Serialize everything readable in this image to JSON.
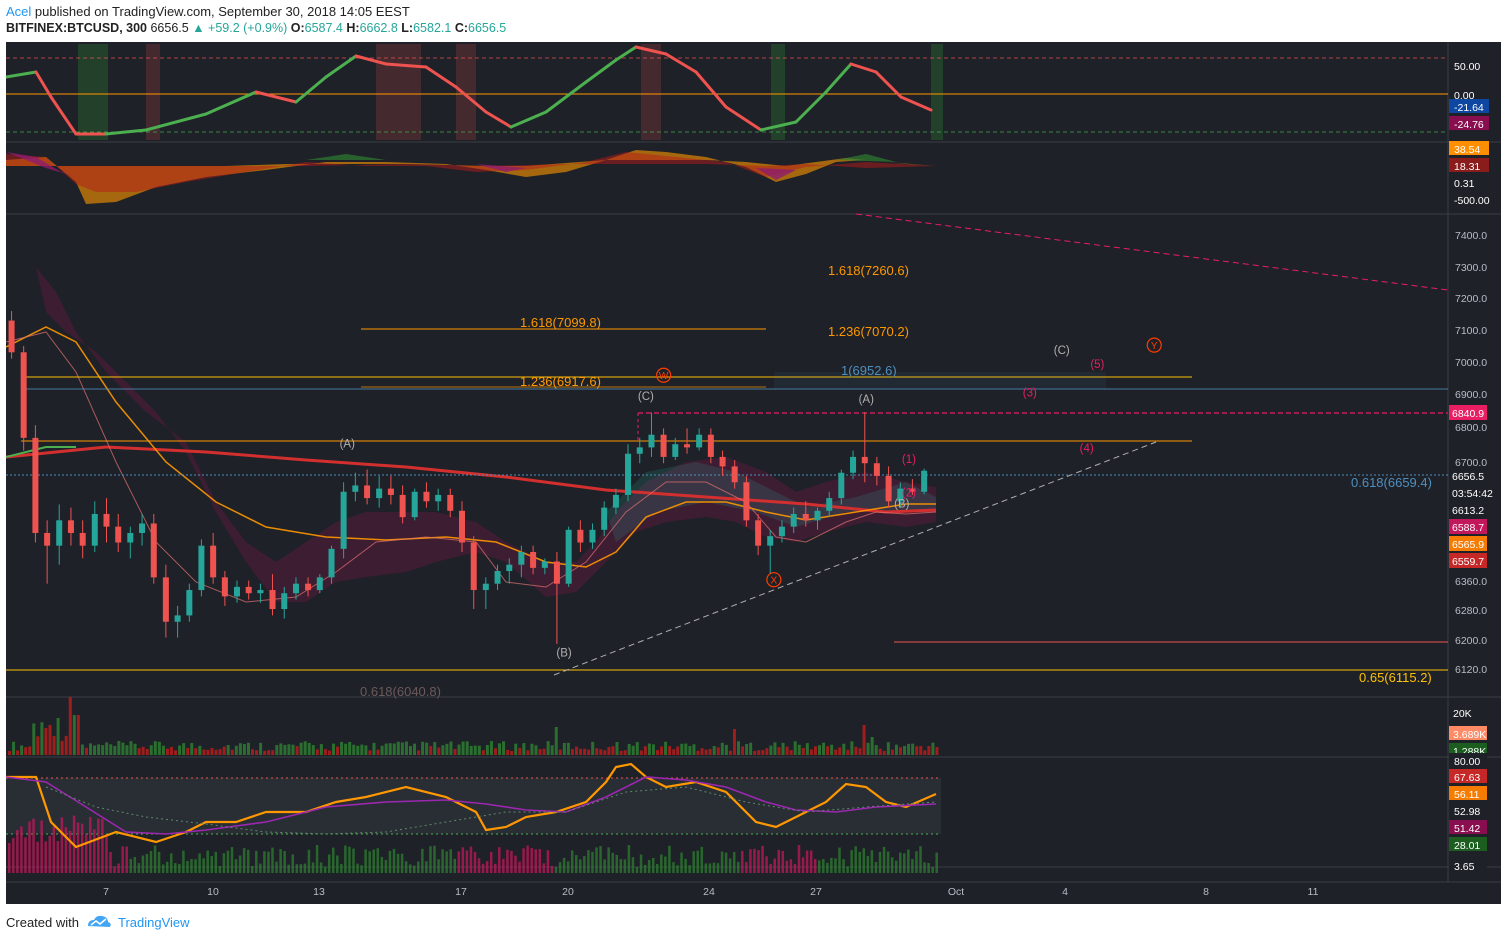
{
  "header": {
    "author": "Acel",
    "published_text": "published on TradingView.com, September 30, 2018 14:05 EEST",
    "symbol": "BITFINEX:BTCUSD, 300",
    "last": "6656.5",
    "change": "▲ +59.2 (+0.9%)",
    "ohlc": [
      {
        "k": "O:",
        "v": "6587.4"
      },
      {
        "k": "H:",
        "v": "6662.8"
      },
      {
        "k": "L:",
        "v": "6582.1"
      },
      {
        "k": "C:",
        "v": "6656.5"
      }
    ]
  },
  "footer": {
    "created_with": "Created with",
    "brand": "TradingView"
  },
  "colors": {
    "bg": "#1e2127",
    "bull": "#26a69a",
    "bear": "#ef5350",
    "fib": "#ff9800",
    "ma_red": "#d32f2f",
    "ma_orange": "#ff9800",
    "ma_green": "#4caf50",
    "wave_red": "#ff3d00",
    "wave_pink": "#e91e63",
    "wave_gray": "#b0b0b0",
    "blue_fib": "#4f8fbf"
  },
  "chart_data": {
    "type": "candlestick",
    "symbol": "BITFINEX:BTCUSD",
    "timeframe": "300",
    "x_ticks": [
      "7",
      "10",
      "13",
      "17",
      "20",
      "24",
      "27",
      "Oct",
      "4",
      "8",
      "11"
    ],
    "price_axis": {
      "ylim": [
        6070,
        7470
      ],
      "ticks": [
        "7400.0",
        "7300.0",
        "7200.0",
        "7100.0",
        "7000.0",
        "6900.0",
        "6800.0",
        "6700.0",
        "6360.0",
        "6280.0",
        "6200.0",
        "6120.0"
      ],
      "labels": [
        {
          "value": "6840.9",
          "color": "#e91e63"
        },
        {
          "value": "6656.5",
          "color": "#1e2127"
        },
        {
          "value": "03:54:42",
          "color": "#1e2127"
        },
        {
          "value": "6613.2",
          "color": "#1e2127"
        },
        {
          "value": "6588.7",
          "color": "#c2185b"
        },
        {
          "value": "6565.9",
          "color": "#f57c00"
        },
        {
          "value": "6559.7",
          "color": "#c62828"
        }
      ]
    },
    "fib_levels": [
      {
        "label": "1.618(7260.6)",
        "price": 7260.6
      },
      {
        "label": "1.618(7099.8)",
        "price": 7099.8
      },
      {
        "label": "1.236(7070.2)",
        "price": 7070.2
      },
      {
        "label": "1(6952.6)",
        "price": 6952.6
      },
      {
        "label": "1.236(6917.6)",
        "price": 6917.6
      },
      {
        "label": "0.618(6659.4)",
        "price": 6659.4
      },
      {
        "label": "0.65(6115.2)",
        "price": 6115.2
      },
      {
        "label": "0.618(6040.8)",
        "price": 6040.8
      }
    ],
    "wave_labels": [
      {
        "text": "Y",
        "circled": true,
        "color": "red",
        "day": 3.15,
        "price": 7460
      },
      {
        "text": "(A)",
        "color": "gray",
        "day": 13.8,
        "price": 6730
      },
      {
        "text": "(B)",
        "color": "gray",
        "day": 19.9,
        "price": 6070
      },
      {
        "text": "(C)",
        "color": "gray",
        "day": 22.2,
        "price": 6880
      },
      {
        "text": "W",
        "circled": true,
        "color": "red",
        "day": 22.7,
        "price": 6945
      },
      {
        "text": "X",
        "circled": true,
        "color": "red",
        "day": 25.8,
        "price": 6300
      },
      {
        "text": "(A)",
        "color": "gray",
        "day": 28.4,
        "price": 6870
      },
      {
        "text": "(B)",
        "color": "gray",
        "day": 29.4,
        "price": 6540
      },
      {
        "text": "(1)",
        "color": "pink",
        "day": 29.6,
        "price": 6680
      },
      {
        "text": "(2)",
        "color": "pink",
        "day": 29.6,
        "price": 6575
      },
      {
        "text": "(3)",
        "color": "pink",
        "day": 33.0,
        "price": 6890
      },
      {
        "text": "(4)",
        "color": "pink",
        "day": 34.6,
        "price": 6715
      },
      {
        "text": "(5)",
        "color": "pink",
        "day": 34.9,
        "price": 6980
      },
      {
        "text": "(C)",
        "color": "gray",
        "day": 33.9,
        "price": 7025
      },
      {
        "text": "Y",
        "circled": true,
        "color": "red",
        "day": 36.5,
        "price": 7040
      }
    ],
    "indicator_1": {
      "labels": [
        "50.00",
        "0.00",
        "-21.64",
        "-24.76"
      ]
    },
    "indicator_2": {
      "labels": [
        "38.54",
        "18.31",
        "0.31",
        "-500.00"
      ]
    },
    "volume": {
      "labels": [
        "20K",
        "3.689K",
        "1.288K"
      ]
    },
    "indicator_3": {
      "labels": [
        "80.00",
        "67.63",
        "56.11",
        "52.98",
        "51.42",
        "28.01",
        "3.65"
      ]
    },
    "candles": [
      [
        3.0,
        7300,
        7380,
        7255,
        7320
      ],
      [
        3.33,
        7320,
        7430,
        7280,
        7400
      ],
      [
        3.67,
        7400,
        7430,
        7330,
        7360
      ],
      [
        4.0,
        7360,
        7420,
        7100,
        7130
      ],
      [
        4.33,
        7130,
        7160,
        7010,
        7030
      ],
      [
        4.67,
        7030,
        7050,
        6720,
        6760
      ],
      [
        5.0,
        6760,
        6800,
        6430,
        6460
      ],
      [
        5.33,
        6460,
        6500,
        6300,
        6420
      ],
      [
        5.67,
        6420,
        6550,
        6360,
        6500
      ],
      [
        6.0,
        6500,
        6540,
        6420,
        6460
      ],
      [
        6.33,
        6460,
        6500,
        6380,
        6420
      ],
      [
        6.67,
        6420,
        6560,
        6400,
        6520
      ],
      [
        7.0,
        6520,
        6570,
        6430,
        6480
      ],
      [
        7.33,
        6480,
        6520,
        6400,
        6430
      ],
      [
        7.67,
        6430,
        6480,
        6380,
        6460
      ],
      [
        8.0,
        6460,
        6520,
        6420,
        6490
      ],
      [
        8.33,
        6490,
        6520,
        6300,
        6320
      ],
      [
        8.67,
        6320,
        6360,
        6130,
        6180
      ],
      [
        9.0,
        6180,
        6230,
        6130,
        6200
      ],
      [
        9.33,
        6200,
        6300,
        6180,
        6280
      ],
      [
        9.67,
        6280,
        6440,
        6260,
        6420
      ],
      [
        10.0,
        6420,
        6460,
        6300,
        6320
      ],
      [
        10.33,
        6320,
        6340,
        6230,
        6260
      ],
      [
        10.67,
        6260,
        6310,
        6240,
        6290
      ],
      [
        11.0,
        6290,
        6310,
        6250,
        6270
      ],
      [
        11.33,
        6270,
        6300,
        6240,
        6280
      ],
      [
        11.67,
        6280,
        6330,
        6200,
        6220
      ],
      [
        12.0,
        6220,
        6290,
        6190,
        6270
      ],
      [
        12.33,
        6270,
        6320,
        6250,
        6300
      ],
      [
        12.67,
        6300,
        6320,
        6260,
        6280
      ],
      [
        13.0,
        6280,
        6330,
        6270,
        6320
      ],
      [
        13.33,
        6320,
        6420,
        6300,
        6410
      ],
      [
        13.67,
        6410,
        6620,
        6380,
        6590
      ],
      [
        14.0,
        6590,
        6650,
        6560,
        6610
      ],
      [
        14.33,
        6610,
        6660,
        6550,
        6570
      ],
      [
        14.67,
        6570,
        6640,
        6540,
        6600
      ],
      [
        15.0,
        6600,
        6640,
        6550,
        6580
      ],
      [
        15.33,
        6580,
        6610,
        6490,
        6510
      ],
      [
        15.67,
        6510,
        6600,
        6500,
        6590
      ],
      [
        16.0,
        6590,
        6620,
        6540,
        6560
      ],
      [
        16.33,
        6560,
        6600,
        6530,
        6580
      ],
      [
        16.67,
        6580,
        6600,
        6510,
        6530
      ],
      [
        17.0,
        6530,
        6560,
        6400,
        6430
      ],
      [
        17.33,
        6430,
        6450,
        6220,
        6280
      ],
      [
        17.67,
        6280,
        6320,
        6220,
        6300
      ],
      [
        18.0,
        6300,
        6360,
        6280,
        6340
      ],
      [
        18.33,
        6340,
        6380,
        6300,
        6360
      ],
      [
        18.67,
        6360,
        6420,
        6320,
        6400
      ],
      [
        19.0,
        6400,
        6420,
        6330,
        6350
      ],
      [
        19.33,
        6350,
        6380,
        6330,
        6370
      ],
      [
        19.67,
        6370,
        6400,
        6110,
        6300
      ],
      [
        20.0,
        6300,
        6480,
        6290,
        6470
      ],
      [
        20.33,
        6470,
        6500,
        6400,
        6430
      ],
      [
        20.67,
        6430,
        6490,
        6410,
        6470
      ],
      [
        21.0,
        6470,
        6560,
        6450,
        6540
      ],
      [
        21.33,
        6540,
        6600,
        6520,
        6580
      ],
      [
        21.67,
        6580,
        6740,
        6560,
        6710
      ],
      [
        22.0,
        6710,
        6760,
        6680,
        6730
      ],
      [
        22.33,
        6730,
        6840,
        6700,
        6770
      ],
      [
        22.67,
        6770,
        6790,
        6680,
        6700
      ],
      [
        23.0,
        6700,
        6760,
        6690,
        6740
      ],
      [
        23.33,
        6740,
        6790,
        6710,
        6730
      ],
      [
        23.67,
        6730,
        6790,
        6720,
        6770
      ],
      [
        24.0,
        6770,
        6790,
        6680,
        6700
      ],
      [
        24.33,
        6700,
        6720,
        6640,
        6670
      ],
      [
        24.67,
        6670,
        6690,
        6600,
        6620
      ],
      [
        25.0,
        6620,
        6640,
        6480,
        6500
      ],
      [
        25.33,
        6500,
        6520,
        6390,
        6420
      ],
      [
        25.67,
        6420,
        6470,
        6330,
        6450
      ],
      [
        26.0,
        6450,
        6500,
        6430,
        6480
      ],
      [
        26.33,
        6480,
        6540,
        6460,
        6520
      ],
      [
        26.67,
        6520,
        6560,
        6480,
        6500
      ],
      [
        27.0,
        6500,
        6540,
        6470,
        6530
      ],
      [
        27.33,
        6530,
        6590,
        6510,
        6570
      ],
      [
        27.67,
        6570,
        6660,
        6550,
        6650
      ],
      [
        28.0,
        6650,
        6720,
        6630,
        6700
      ],
      [
        28.33,
        6700,
        6841,
        6620,
        6680
      ],
      [
        28.67,
        6680,
        6700,
        6610,
        6640
      ],
      [
        29.0,
        6640,
        6670,
        6540,
        6560
      ],
      [
        29.33,
        6560,
        6620,
        6540,
        6600
      ],
      [
        29.67,
        6600,
        6630,
        6580,
        6590
      ],
      [
        30.0,
        6590,
        6663,
        6582,
        6656.5
      ]
    ]
  }
}
